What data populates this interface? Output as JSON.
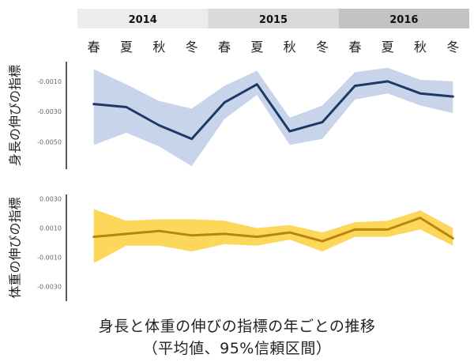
{
  "chart_data": {
    "type": "line",
    "title": "身長と体重の伸びの指標の年ごとの推移",
    "subtitle": "（平均値、95%信頼区間）",
    "years": [
      {
        "label": "2014",
        "color": "#ececec"
      },
      {
        "label": "2015",
        "color": "#d9d9d9"
      },
      {
        "label": "2016",
        "color": "#c3c3c3"
      }
    ],
    "categories": [
      "春",
      "夏",
      "秋",
      "冬",
      "春",
      "夏",
      "秋",
      "冬",
      "春",
      "夏",
      "秋",
      "冬"
    ],
    "panels": [
      {
        "name": "height",
        "ylabel": "身長の伸びの指標",
        "line_color": "#1f3864",
        "band_color": "#c7d4ea",
        "ylim": [
          -0.0068,
          0.0003
        ],
        "yticks": [
          -0.001,
          -0.003,
          -0.005
        ],
        "ytick_labels": [
          "-0.0010",
          "-0.0030",
          "-0.0050"
        ],
        "mean": [
          -0.0025,
          -0.0027,
          -0.0039,
          -0.0048,
          -0.0024,
          -0.0012,
          -0.0043,
          -0.0037,
          -0.0013,
          -0.001,
          -0.0018,
          -0.002
        ],
        "lower": [
          -0.0052,
          -0.0044,
          -0.0053,
          -0.0066,
          -0.0035,
          -0.0019,
          -0.0052,
          -0.0048,
          -0.0022,
          -0.0018,
          -0.0026,
          -0.0031
        ],
        "upper": [
          -0.0002,
          -0.0012,
          -0.0023,
          -0.0028,
          -0.0013,
          -0.0003,
          -0.0034,
          -0.0026,
          -0.0004,
          -0.0001,
          -0.0009,
          -0.001
        ]
      },
      {
        "name": "weight",
        "ylabel": "体重の伸びの指標",
        "line_color": "#b8860b",
        "band_color": "#fcd75a",
        "ylim": [
          -0.004,
          0.0033
        ],
        "yticks": [
          0.003,
          0.001,
          -0.001,
          -0.003
        ],
        "ytick_labels": [
          "0.0030",
          "0.0010",
          "-0.0010",
          "-0.0030"
        ],
        "mean": [
          0.0004,
          0.0006,
          0.0008,
          0.0005,
          0.0006,
          0.0004,
          0.0007,
          0.0001,
          0.0009,
          0.0009,
          0.0017,
          0.0003
        ],
        "lower": [
          -0.0014,
          -0.0002,
          -0.0002,
          -0.0006,
          -0.0001,
          -0.0002,
          0.0002,
          -0.0006,
          0.0004,
          0.0004,
          0.0009,
          -0.0002
        ],
        "upper": [
          0.0023,
          0.0015,
          0.0016,
          0.0016,
          0.0015,
          0.001,
          0.0012,
          0.0007,
          0.0014,
          0.0015,
          0.0022,
          0.001
        ]
      }
    ]
  }
}
